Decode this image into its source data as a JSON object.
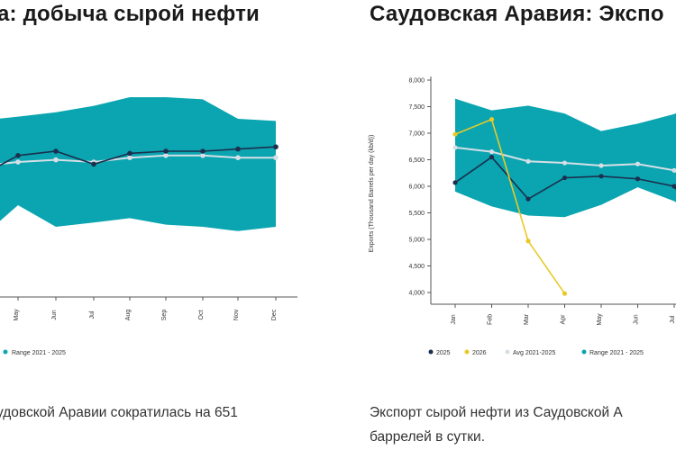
{
  "left_panel": {
    "title": "а: добыча сырой нефти",
    "description": "удовской Аравии сократилась на 651",
    "legend": [
      {
        "label": "Range 2021 - 2025",
        "color": "#0aa5b0"
      }
    ]
  },
  "right_panel": {
    "title": "Саудовская Аравия: Экспо",
    "description_line1": "Экспорт сырой нефти из Саудовской А",
    "description_line2": "баррелей в сутки.",
    "legend": [
      {
        "label": "2025",
        "color": "#1b2f4e"
      },
      {
        "label": "2026",
        "color": "#e8c92a"
      },
      {
        "label": "Avg 2021-2025",
        "color": "#d6dfe6"
      },
      {
        "label": "Range 2021 - 2025",
        "color": "#0aa5b0"
      }
    ]
  },
  "colors": {
    "range": "#0aa5b0",
    "series_2025": "#1b2f4e",
    "series_2026": "#e8c92a",
    "avg": "#d6dfe6"
  },
  "chart_data": [
    {
      "type": "line",
      "title": "а: добыча сырой нефти",
      "categories": [
        "May",
        "Jun",
        "Jul",
        "Aug",
        "Sep",
        "Oct",
        "Nov",
        "Dec"
      ],
      "range_low": [
        0.3,
        0.2,
        0.22,
        0.24,
        0.21,
        0.2,
        0.18,
        0.2
      ],
      "range_high": [
        0.71,
        0.73,
        0.76,
        0.8,
        0.8,
        0.79,
        0.7,
        0.69
      ],
      "series": [
        {
          "name": "2025",
          "values": [
            0.53,
            0.55,
            0.49,
            0.54,
            0.55,
            0.55,
            0.56,
            0.57
          ]
        },
        {
          "name": "Avg 2021-2025",
          "values": [
            0.5,
            0.51,
            0.5,
            0.52,
            0.53,
            0.53,
            0.52,
            0.52
          ]
        }
      ],
      "legend": [
        "Range 2021 - 2025"
      ]
    },
    {
      "type": "line",
      "title": "Саудовская Аравия: Экспо",
      "ylabel": "Exports (Thousand Barrels per day (kb/d))",
      "ylim": [
        4000,
        8000
      ],
      "yticks": [
        "4,000",
        "4,500",
        "5,000",
        "5,500",
        "6,000",
        "6,500",
        "7,000",
        "7,500",
        "8,000"
      ],
      "categories": [
        "Jan",
        "Feb",
        "Mar",
        "Apr",
        "May",
        "Jun",
        "Jul"
      ],
      "range_low": [
        5900,
        5620,
        5450,
        5420,
        5650,
        5980,
        5720
      ],
      "range_high": [
        7650,
        7430,
        7520,
        7370,
        7040,
        7180,
        7360
      ],
      "series": [
        {
          "name": "2025",
          "values": [
            6070,
            6550,
            5760,
            6160,
            6190,
            6140,
            6000
          ]
        },
        {
          "name": "2026",
          "values": [
            6980,
            7260,
            4970,
            3980,
            null,
            null,
            null
          ]
        },
        {
          "name": "Avg 2021-2025",
          "values": [
            6730,
            6650,
            6470,
            6440,
            6390,
            6420,
            6300
          ]
        }
      ],
      "legend": [
        "2025",
        "2026",
        "Avg 2021-2025",
        "Range 2021 - 2025"
      ]
    }
  ]
}
